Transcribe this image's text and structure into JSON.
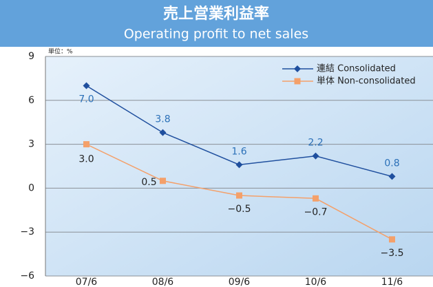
{
  "chart_data": {
    "type": "line",
    "title": "売上営業利益率",
    "subtitle": "Operating profit to net sales",
    "unit_label": "単位：%",
    "categories": [
      "07/6",
      "08/6",
      "09/6",
      "10/6",
      "11/6"
    ],
    "series": [
      {
        "name": "連結 Consolidated",
        "color": "#1f4f9e",
        "label_color": "#2b70b8",
        "marker": "diamond",
        "values": [
          7.0,
          3.8,
          1.6,
          2.2,
          0.8
        ],
        "value_labels": [
          "7.0",
          "3.8",
          "1.6",
          "2.2",
          "0.8"
        ]
      },
      {
        "name": "単体 Non-consolidated",
        "color": "#f4a06a",
        "label_color": "#222222",
        "marker": "square",
        "values": [
          3.0,
          0.5,
          -0.5,
          -0.7,
          -3.5
        ],
        "value_labels": [
          "3.0",
          "0.5",
          "−0.5",
          "−0.7",
          "−3.5"
        ]
      }
    ],
    "ylim": [
      -6,
      9
    ],
    "yticks": [
      {
        "value": -6,
        "label": "−6"
      },
      {
        "value": -3,
        "label": "−3"
      },
      0,
      3,
      6,
      9
    ],
    "grid": true,
    "legend": "top-right"
  }
}
